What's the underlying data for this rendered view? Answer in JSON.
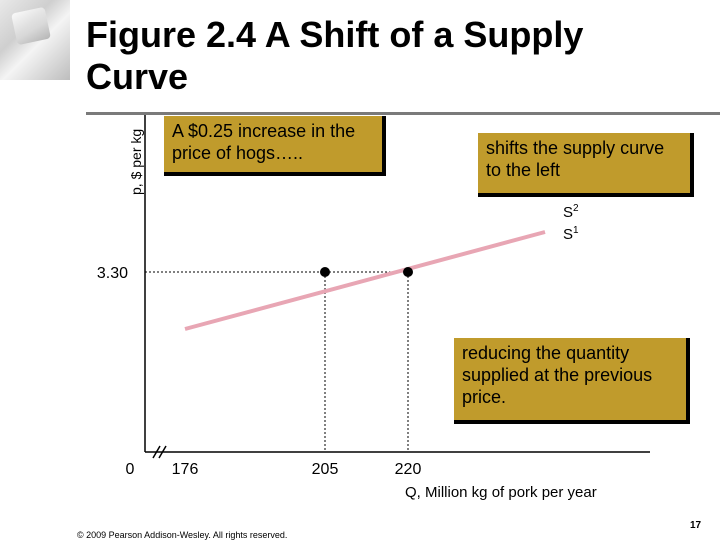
{
  "title": "Figure 2.4  A Shift of a Supply Curve",
  "callouts": {
    "price_increase": "A $0.25 increase in the price of hogs…..",
    "shift_left": "shifts the supply curve to the left",
    "reduce_quantity": "reducing the quantity supplied at the previous price."
  },
  "footer": "© 2009 Pearson Addison-Wesley. All rights reserved.",
  "page_number": "17",
  "chart_data": {
    "type": "line",
    "xlabel": "Q, Million kg of pork per year",
    "ylabel": "p, $ per kg",
    "x_ticks": [
      "0",
      "176",
      "205",
      "220"
    ],
    "y_ticks": [
      "3.30"
    ],
    "series": [
      {
        "name": "S1",
        "line_points": [
          [
            176,
            2.9
          ],
          [
            270,
            3.7
          ]
        ],
        "label": "S1",
        "color": "#e8a6b4"
      },
      {
        "name": "S2",
        "label": "S2",
        "color": "#e8a6b4"
      }
    ],
    "highlighted_points": [
      {
        "x": 205,
        "y": 3.3
      },
      {
        "x": 220,
        "y": 3.3
      }
    ],
    "colors": {
      "supply_line": "#e8a6b4",
      "callout_fill": "#c09b2c"
    }
  }
}
